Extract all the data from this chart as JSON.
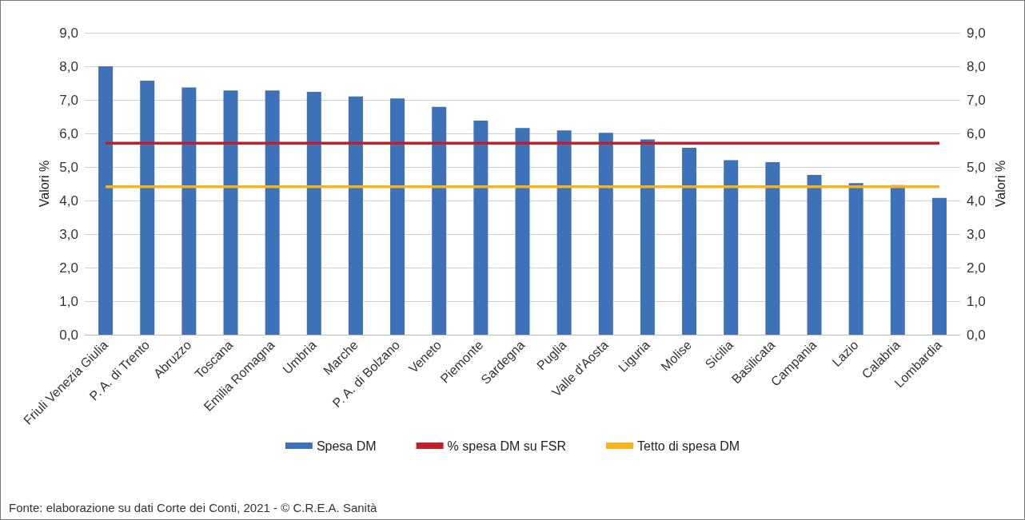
{
  "chart_data": {
    "type": "bar",
    "categories": [
      "Friuli Venezia Giulia",
      "P. A. di Trento",
      "Abruzzo",
      "Toscana",
      "Emilia Romagna",
      "Umbria",
      "Marche",
      "P. A. di Bolzano",
      "Veneto",
      "Piemonte",
      "Sardegna",
      "Puglia",
      "Valle d'Aosta",
      "Liguria",
      "Molise",
      "Sicilia",
      "Basilicata",
      "Campania",
      "Lazio",
      "Calabria",
      "Lombardia"
    ],
    "series": [
      {
        "name": "Spesa DM",
        "color": "#3d72b8",
        "values": [
          8.0,
          7.57,
          7.37,
          7.28,
          7.28,
          7.24,
          7.1,
          7.04,
          6.79,
          6.38,
          6.16,
          6.09,
          6.02,
          5.82,
          5.57,
          5.2,
          5.14,
          4.76,
          4.52,
          4.46,
          4.08
        ]
      },
      {
        "name": "% spesa DM su FSR",
        "type": "line",
        "color": "#c0202a",
        "values": [
          5.71,
          5.71,
          5.71,
          5.71,
          5.71,
          5.71,
          5.71,
          5.71,
          5.71,
          5.71,
          5.71,
          5.71,
          5.71,
          5.71,
          5.71,
          5.71,
          5.71,
          5.71,
          5.71,
          5.71,
          5.71
        ]
      },
      {
        "name": "Tetto di spesa DM",
        "type": "line",
        "color": "#f5b41e",
        "values": [
          4.41,
          4.41,
          4.41,
          4.41,
          4.41,
          4.41,
          4.41,
          4.41,
          4.41,
          4.41,
          4.41,
          4.41,
          4.41,
          4.41,
          4.41,
          4.41,
          4.41,
          4.41,
          4.41,
          4.41,
          4.41
        ]
      }
    ],
    "ylabel": "Valori %",
    "y2label": "Valori %",
    "ylim": [
      0,
      9
    ],
    "y2lim": [
      0,
      9
    ],
    "yticks": [
      {
        "value": 0,
        "label": "0,0"
      },
      {
        "value": 1,
        "label": "1,0"
      },
      {
        "value": 2,
        "label": "2,0"
      },
      {
        "value": 3,
        "label": "3,0"
      },
      {
        "value": 4,
        "label": "4,0"
      },
      {
        "value": 5,
        "label": "5,0"
      },
      {
        "value": 6,
        "label": "6,0"
      },
      {
        "value": 7,
        "label": "7,0"
      },
      {
        "value": 8,
        "label": "8,0"
      },
      {
        "value": 9,
        "label": "9,0"
      }
    ],
    "y2ticks": [
      {
        "value": 0,
        "label": "0,0"
      },
      {
        "value": 1,
        "label": "1,0"
      },
      {
        "value": 2,
        "label": "2,0"
      },
      {
        "value": 3,
        "label": "3,0"
      },
      {
        "value": 4,
        "label": "4,0"
      },
      {
        "value": 5,
        "label": "5,0"
      },
      {
        "value": 6,
        "label": "6,0"
      },
      {
        "value": 7,
        "label": "7,0"
      },
      {
        "value": 8,
        "label": "8,0"
      },
      {
        "value": 9,
        "label": "9,0"
      }
    ],
    "grid": "y",
    "legend": "bottom",
    "marker": "none",
    "annotations": [
      "Fonte: elaborazione su dati Corte dei Conti, 2021 - © C.R.E.A. Sanità"
    ]
  }
}
